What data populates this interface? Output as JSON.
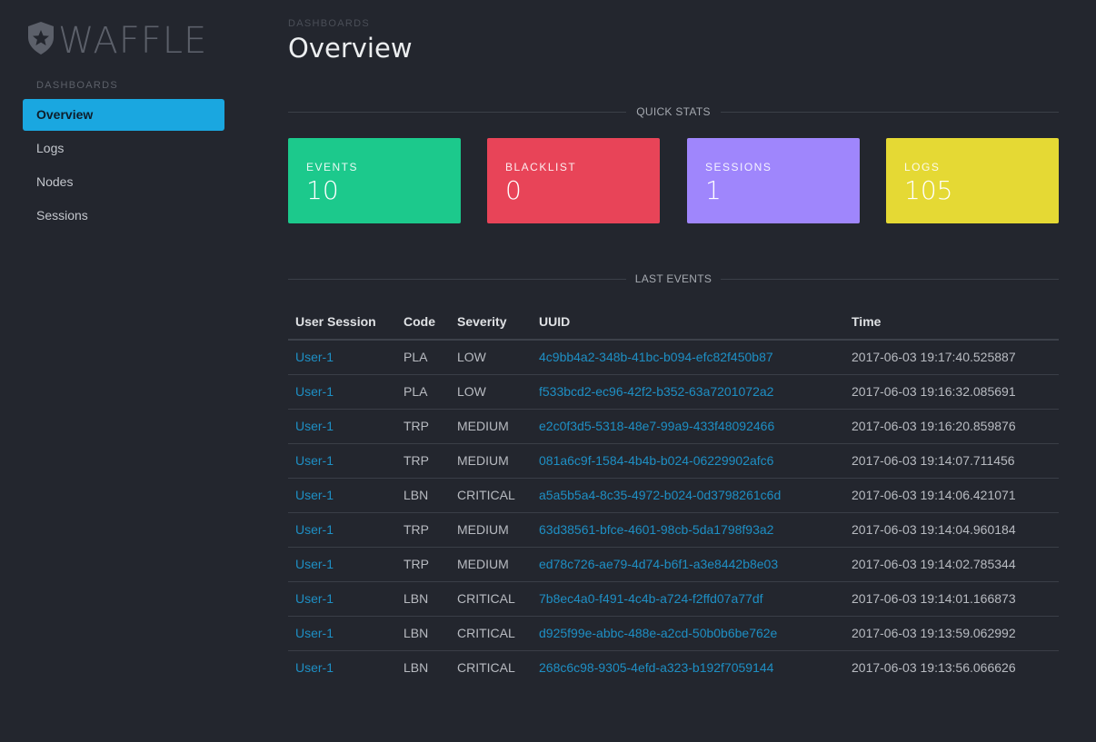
{
  "brand": {
    "name": "WAFFLE"
  },
  "sidebar": {
    "section": "DASHBOARDS",
    "items": [
      {
        "label": "Overview",
        "active": true
      },
      {
        "label": "Logs",
        "active": false
      },
      {
        "label": "Nodes",
        "active": false
      },
      {
        "label": "Sessions",
        "active": false
      }
    ]
  },
  "header": {
    "breadcrumb": "DASHBOARDS",
    "title": "Overview"
  },
  "quick_stats": {
    "label": "QUICK STATS",
    "cards": [
      {
        "label": "EVENTS",
        "value": "10",
        "color": "#1cc98c"
      },
      {
        "label": "BLACKLIST",
        "value": "0",
        "color": "#e84458"
      },
      {
        "label": "SESSIONS",
        "value": "1",
        "color": "#9f86fc"
      },
      {
        "label": "LOGS",
        "value": "105",
        "color": "#e5d934"
      }
    ]
  },
  "last_events": {
    "label": "LAST EVENTS",
    "columns": [
      "User Session",
      "Code",
      "Severity",
      "UUID",
      "Time"
    ],
    "rows": [
      {
        "session": "User-1",
        "code": "PLA",
        "severity": "LOW",
        "uuid": "4c9bb4a2-348b-41bc-b094-efc82f450b87",
        "time": "2017-06-03 19:17:40.525887"
      },
      {
        "session": "User-1",
        "code": "PLA",
        "severity": "LOW",
        "uuid": "f533bcd2-ec96-42f2-b352-63a7201072a2",
        "time": "2017-06-03 19:16:32.085691"
      },
      {
        "session": "User-1",
        "code": "TRP",
        "severity": "MEDIUM",
        "uuid": "e2c0f3d5-5318-48e7-99a9-433f48092466",
        "time": "2017-06-03 19:16:20.859876"
      },
      {
        "session": "User-1",
        "code": "TRP",
        "severity": "MEDIUM",
        "uuid": "081a6c9f-1584-4b4b-b024-06229902afc6",
        "time": "2017-06-03 19:14:07.711456"
      },
      {
        "session": "User-1",
        "code": "LBN",
        "severity": "CRITICAL",
        "uuid": "a5a5b5a4-8c35-4972-b024-0d3798261c6d",
        "time": "2017-06-03 19:14:06.421071"
      },
      {
        "session": "User-1",
        "code": "TRP",
        "severity": "MEDIUM",
        "uuid": "63d38561-bfce-4601-98cb-5da1798f93a2",
        "time": "2017-06-03 19:14:04.960184"
      },
      {
        "session": "User-1",
        "code": "TRP",
        "severity": "MEDIUM",
        "uuid": "ed78c726-ae79-4d74-b6f1-a3e8442b8e03",
        "time": "2017-06-03 19:14:02.785344"
      },
      {
        "session": "User-1",
        "code": "LBN",
        "severity": "CRITICAL",
        "uuid": "7b8ec4a0-f491-4c4b-a724-f2ffd07a77df",
        "time": "2017-06-03 19:14:01.166873"
      },
      {
        "session": "User-1",
        "code": "LBN",
        "severity": "CRITICAL",
        "uuid": "d925f99e-abbc-488e-a2cd-50b0b6be762e",
        "time": "2017-06-03 19:13:59.062992"
      },
      {
        "session": "User-1",
        "code": "LBN",
        "severity": "CRITICAL",
        "uuid": "268c6c98-9305-4efd-a323-b192f7059144",
        "time": "2017-06-03 19:13:56.066626"
      }
    ]
  }
}
